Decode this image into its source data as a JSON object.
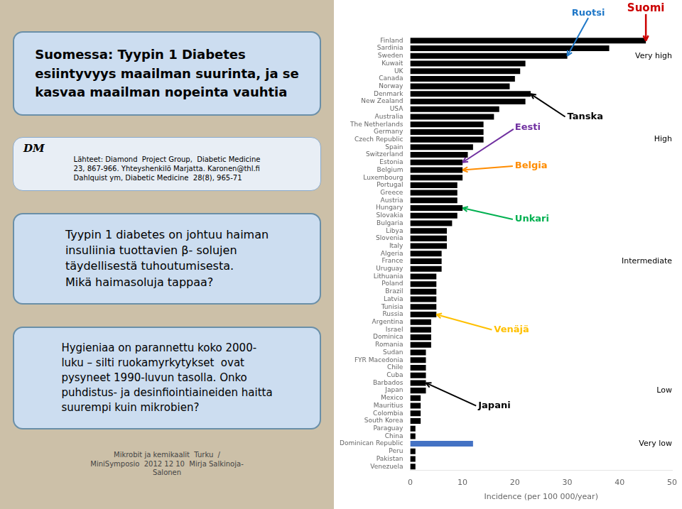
{
  "chart_data": {
    "type": "bar",
    "orientation": "horizontal",
    "categories": [
      "Finland",
      "Sardinia",
      "Sweden",
      "Kuwait",
      "UK",
      "Canada",
      "Norway",
      "Denmark",
      "New Zealand",
      "USA",
      "Australia",
      "The Netherlands",
      "Germany",
      "Czech Republic",
      "Spain",
      "Switzerland",
      "Estonia",
      "Belgium",
      "Luxembourg",
      "Portugal",
      "Greece",
      "Austria",
      "Hungary",
      "Slovakia",
      "Bulgaria",
      "Libya",
      "Slovenia",
      "Italy",
      "Algeria",
      "France",
      "Uruguay",
      "Lithuania",
      "Poland",
      "Brazil",
      "Latvia",
      "Tunisia",
      "Russia",
      "Argentina",
      "Israel",
      "Dominica",
      "Romania",
      "Sudan",
      "FYR Macedonia",
      "Chile",
      "Cuba",
      "Barbados",
      "Japan",
      "Mexico",
      "Mauritius",
      "Colombia",
      "South Korea",
      "Paraguay",
      "China",
      "Dominican Republic",
      "Peru",
      "Pakistan",
      "Venezuela"
    ],
    "values": [
      45,
      38,
      30,
      22,
      21,
      20,
      19,
      23,
      22,
      17,
      16,
      14,
      14,
      14,
      12,
      11,
      10,
      10,
      10,
      9,
      9,
      9,
      10,
      9,
      8,
      7,
      7,
      7,
      6,
      6,
      6,
      5,
      5,
      5,
      5,
      5,
      5,
      4,
      4,
      4,
      4,
      3,
      3,
      3,
      3,
      3,
      3,
      2,
      2,
      2,
      2,
      1,
      1,
      12,
      1,
      1,
      1
    ],
    "colors": [
      "#000000",
      "#000000",
      "#000000",
      "#000000",
      "#000000",
      "#000000",
      "#000000",
      "#000000",
      "#000000",
      "#000000",
      "#000000",
      "#000000",
      "#000000",
      "#000000",
      "#000000",
      "#000000",
      "#000000",
      "#000000",
      "#000000",
      "#000000",
      "#000000",
      "#000000",
      "#000000",
      "#000000",
      "#000000",
      "#000000",
      "#000000",
      "#000000",
      "#000000",
      "#000000",
      "#000000",
      "#000000",
      "#000000",
      "#000000",
      "#000000",
      "#000000",
      "#000000",
      "#000000",
      "#000000",
      "#000000",
      "#000000",
      "#000000",
      "#000000",
      "#000000",
      "#000000",
      "#000000",
      "#000000",
      "#000000",
      "#000000",
      "#000000",
      "#000000",
      "#000000",
      "#000000",
      "#4472c4",
      "#000000",
      "#000000",
      "#000000"
    ],
    "xlabel": "Incidence (per 100 000/year)",
    "xlim": [
      0,
      50
    ],
    "xticks": [
      0,
      10,
      20,
      30,
      40,
      50
    ],
    "grid": false,
    "legend": false,
    "annotations": [
      {
        "text": "Suomi",
        "category": "Finland",
        "color": "#cc0000",
        "arrow": true
      },
      {
        "text": "Ruotsi",
        "category": "Sweden",
        "color": "#1f78c8",
        "arrow": true
      },
      {
        "text": "Tanska",
        "category": "Denmark",
        "color": "#000000",
        "arrow": true
      },
      {
        "text": "Eesti",
        "category": "Estonia",
        "color": "#7030a0",
        "arrow": true
      },
      {
        "text": "Belgia",
        "category": "Belgium",
        "color": "#ff8c00",
        "arrow": true
      },
      {
        "text": "Unkari",
        "category": "Hungary",
        "color": "#00b050",
        "arrow": true
      },
      {
        "text": "Venäjä",
        "category": "Russia",
        "color": "#ffc000",
        "arrow": true
      },
      {
        "text": "Japani",
        "category": "Barbados",
        "color": "#000000",
        "arrow": true
      },
      {
        "text": "Very high",
        "category": "Sweden",
        "color": "#000000"
      },
      {
        "text": "High",
        "category": "Czech Republic",
        "color": "#000000"
      },
      {
        "text": "Intermediate",
        "category": "France",
        "color": "#000000"
      },
      {
        "text": "Low",
        "category": "Japan",
        "color": "#000000"
      },
      {
        "text": "Very low",
        "category": "Dominican Republic",
        "color": "#000000"
      },
      {
        "text": "Suomessa: Tyypin 1 Diabetes\nesiintyvyys maailman suurinta, ja se\nkasvaa maailman nopeinta vauhtia"
      },
      {
        "text": "DM"
      },
      {
        "text": "Lähteet: Diamond  Project Group,  Diabetic Medicine\n23, 867-966. Yhteyshenkilö Marjatta. Karonen@thl.fi\nDahlquist ym, Diabetic Medicine  28(8), 965-71"
      },
      {
        "text": "Tyypin 1 diabetes on johtuu haiman\ninsuliinia tuottavien β- solujen\ntäydellisestä tuhoutumisesta.\nMikä haimasoluja tappaa?"
      },
      {
        "text": "Hygieniaa on parannettu koko 2000-\nluku – silti ruokamyrkytykset  ovat\npysyneet 1990-luvun tasolla. Onko\npuhdistus- ja desinfiointiaineiden haitta\nsuurempi kuin mikrobien?"
      },
      {
        "text": "Mikrobit ja kemikaalit  Turku  /\nMiniSymposio  2012 12 10  Mirja Salkinoja-\nSalonen"
      }
    ]
  }
}
